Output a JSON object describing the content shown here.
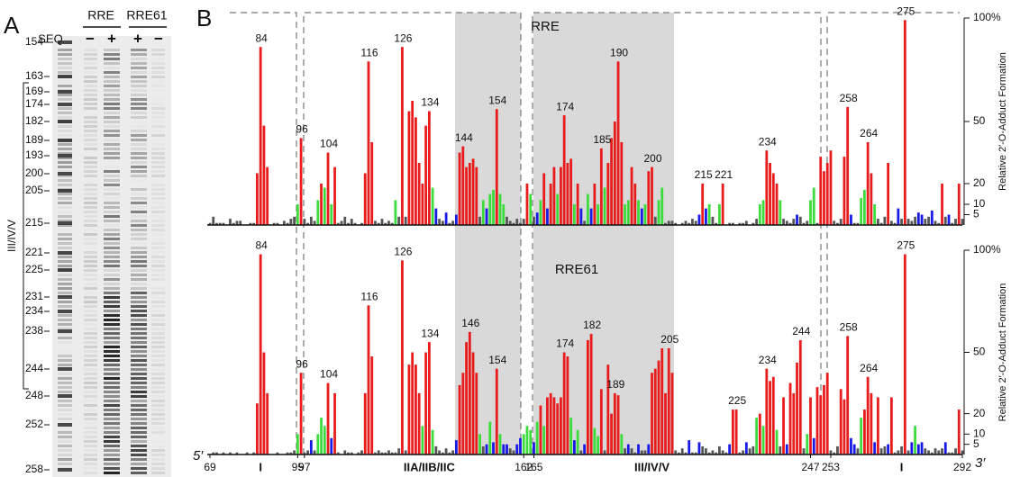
{
  "panel_a": {
    "letter": "A",
    "lane_groups": [
      "RRE",
      "RRE61"
    ],
    "seq_label": "SEQ",
    "lane_signs": [
      "−",
      "+",
      "+",
      "−"
    ],
    "marker_labels": [
      154,
      163,
      169,
      174,
      182,
      189,
      193,
      200,
      205,
      215,
      221,
      225,
      231,
      234,
      238,
      244,
      248,
      252,
      258
    ],
    "bracket_label": "III/IV/V"
  },
  "panel_b_letter": "B",
  "chart_data": [
    {
      "type": "bar",
      "title": "RRE",
      "x_start": 69,
      "values": [
        1,
        4,
        1,
        1,
        1,
        0,
        3,
        1,
        2,
        2,
        0,
        0,
        1,
        1,
        25,
        86,
        48,
        28,
        0,
        1,
        1,
        0,
        2,
        1,
        3,
        4,
        10,
        42,
        3,
        1,
        4,
        2,
        12,
        20,
        18,
        35,
        10,
        28,
        1,
        2,
        4,
        1,
        3,
        1,
        0,
        1,
        25,
        79,
        40,
        2,
        1,
        3,
        1,
        2,
        1,
        12,
        4,
        86,
        4,
        55,
        60,
        52,
        30,
        20,
        48,
        55,
        18,
        8,
        3,
        2,
        6,
        1,
        2,
        5,
        35,
        38,
        28,
        30,
        32,
        28,
        4,
        12,
        8,
        15,
        17,
        56,
        15,
        10,
        4,
        2,
        1,
        3,
        1,
        3,
        20,
        15,
        4,
        6,
        12,
        25,
        8,
        20,
        28,
        15,
        28,
        53,
        30,
        32,
        10,
        20,
        8,
        2,
        15,
        8,
        20,
        10,
        37,
        18,
        30,
        42,
        50,
        79,
        40,
        10,
        12,
        28,
        20,
        12,
        8,
        10,
        26,
        28,
        4,
        12,
        18,
        1,
        2,
        2,
        1,
        0,
        1,
        2,
        1,
        3,
        2,
        5,
        20,
        8,
        10,
        4,
        1,
        10,
        20,
        0,
        1,
        1,
        0,
        1,
        1,
        2,
        0,
        1,
        3,
        10,
        12,
        36,
        30,
        25,
        20,
        12,
        3,
        2,
        1,
        3,
        5,
        4,
        1,
        2,
        12,
        18,
        1,
        33,
        26,
        30,
        36,
        2,
        1,
        3,
        33,
        57,
        5,
        1,
        1,
        13,
        17,
        40,
        25,
        10,
        3,
        1,
        4,
        30,
        2,
        1,
        8,
        3,
        99,
        3,
        2,
        4,
        6,
        5,
        3,
        4,
        7,
        2,
        1,
        20,
        4,
        5,
        1,
        3,
        20,
        3
      ],
      "peak_labels": [
        84,
        96,
        104,
        116,
        126,
        134,
        144,
        154,
        174,
        185,
        190,
        200,
        215,
        221,
        234,
        258,
        264,
        275
      ],
      "color_scale": [
        {
          "from": 0,
          "color": "#555555"
        },
        {
          "from": 5,
          "color": "#1a1ae6"
        },
        {
          "from": 9,
          "color": "#3ddc3d"
        },
        {
          "from": 20,
          "color": "#e81c1c"
        }
      ],
      "ylim": [
        0,
        100
      ],
      "yticks": [
        5,
        10,
        20,
        50,
        {
          "value": 100,
          "label": "100%"
        }
      ],
      "y_label": "Relative 2′-O-Adduct Formation"
    },
    {
      "type": "bar",
      "title": "RRE61",
      "x_start": 69,
      "values": [
        0,
        1,
        1,
        0,
        1,
        0,
        1,
        0,
        1,
        0,
        0,
        1,
        0,
        1,
        25,
        98,
        50,
        30,
        0,
        0,
        1,
        0,
        0,
        1,
        1,
        2,
        10,
        40,
        1,
        2,
        7,
        2,
        10,
        18,
        14,
        35,
        8,
        30,
        1,
        0,
        2,
        1,
        1,
        0,
        1,
        2,
        30,
        73,
        48,
        1,
        2,
        1,
        1,
        2,
        1,
        1,
        3,
        95,
        2,
        44,
        50,
        44,
        30,
        14,
        50,
        55,
        12,
        4,
        2,
        1,
        3,
        1,
        2,
        7,
        34,
        40,
        55,
        60,
        50,
        40,
        10,
        4,
        5,
        16,
        6,
        42,
        10,
        5,
        5,
        3,
        2,
        5,
        8,
        10,
        14,
        12,
        6,
        16,
        24,
        14,
        28,
        30,
        28,
        25,
        28,
        50,
        48,
        18,
        7,
        12,
        2,
        5,
        56,
        59,
        13,
        9,
        32,
        2,
        44,
        20,
        30,
        29,
        10,
        3,
        5,
        3,
        1,
        5,
        2,
        2,
        5,
        40,
        42,
        46,
        52,
        30,
        52,
        40,
        2,
        1,
        3,
        1,
        7,
        1,
        1,
        6,
        4,
        3,
        1,
        2,
        1,
        4,
        2,
        1,
        5,
        22,
        22,
        1,
        2,
        6,
        3,
        4,
        18,
        20,
        14,
        42,
        36,
        38,
        12,
        4,
        28,
        5,
        35,
        30,
        45,
        56,
        3,
        10,
        28,
        8,
        33,
        29,
        34,
        40,
        2,
        1,
        4,
        32,
        27,
        58,
        8,
        5,
        3,
        18,
        22,
        38,
        30,
        6,
        28,
        3,
        4,
        5,
        28,
        1,
        2,
        4,
        98,
        2,
        6,
        14,
        5,
        6,
        3,
        2,
        1,
        3,
        2,
        3,
        6,
        1,
        1,
        3,
        22,
        2
      ],
      "peak_labels": [
        84,
        96,
        104,
        116,
        126,
        134,
        146,
        154,
        174,
        182,
        189,
        205,
        225,
        234,
        244,
        258,
        264,
        275
      ],
      "color_scale": [
        {
          "from": 0,
          "color": "#555555"
        },
        {
          "from": 5,
          "color": "#1a1ae6"
        },
        {
          "from": 9,
          "color": "#3ddc3d"
        },
        {
          "from": 20,
          "color": "#e81c1c"
        }
      ],
      "ylim": [
        0,
        100
      ],
      "yticks": [
        5,
        10,
        20,
        50,
        {
          "value": 100,
          "label": "100%"
        }
      ],
      "y_label": "Relative 2′-O-Adduct Formation",
      "xlim": [
        69,
        292
      ],
      "xticks": [
        69,
        95,
        97,
        162,
        165,
        247,
        253,
        292
      ],
      "domain_labels": [
        {
          "x": 84,
          "label": "I"
        },
        {
          "x": 134,
          "label": "IIA/IIB/IIC"
        },
        {
          "x": 200,
          "label": "III/IV/V"
        },
        {
          "x": 274,
          "label": "I"
        }
      ],
      "end_labels": [
        "5′",
        "3′"
      ]
    }
  ]
}
